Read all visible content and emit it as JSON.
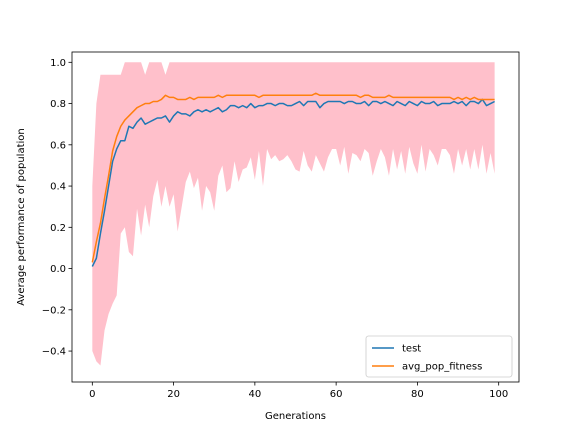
{
  "chart_data": {
    "type": "line",
    "title": "",
    "xlabel": "Generations",
    "ylabel": "Average performance of population",
    "xlim": [
      -5,
      105
    ],
    "ylim": [
      -0.55,
      1.05
    ],
    "xticks": [
      0,
      20,
      40,
      60,
      80,
      100
    ],
    "yticks": [
      -0.4,
      -0.2,
      0.0,
      0.2,
      0.4,
      0.6,
      0.8,
      1.0
    ],
    "xtick_labels": [
      "0",
      "20",
      "40",
      "60",
      "80",
      "100"
    ],
    "ytick_labels": [
      "−0.4",
      "−0.2",
      "0.0",
      "0.2",
      "0.4",
      "0.6",
      "0.8",
      "1.0"
    ],
    "grid": false,
    "legend_position": "lower-right",
    "x": [
      0,
      1,
      2,
      3,
      4,
      5,
      6,
      7,
      8,
      9,
      10,
      11,
      12,
      13,
      14,
      15,
      16,
      17,
      18,
      19,
      20,
      21,
      22,
      23,
      24,
      25,
      26,
      27,
      28,
      29,
      30,
      31,
      32,
      33,
      34,
      35,
      36,
      37,
      38,
      39,
      40,
      41,
      42,
      43,
      44,
      45,
      46,
      47,
      48,
      49,
      50,
      51,
      52,
      53,
      54,
      55,
      56,
      57,
      58,
      59,
      60,
      61,
      62,
      63,
      64,
      65,
      66,
      67,
      68,
      69,
      70,
      71,
      72,
      73,
      74,
      75,
      76,
      77,
      78,
      79,
      80,
      81,
      82,
      83,
      84,
      85,
      86,
      87,
      88,
      89,
      90,
      91,
      92,
      93,
      94,
      95,
      96,
      97,
      98,
      99
    ],
    "series": [
      {
        "name": "test",
        "color": "#1f77b4",
        "values": [
          0.01,
          0.05,
          0.17,
          0.28,
          0.4,
          0.52,
          0.58,
          0.62,
          0.62,
          0.69,
          0.68,
          0.71,
          0.73,
          0.7,
          0.71,
          0.72,
          0.73,
          0.73,
          0.74,
          0.71,
          0.74,
          0.76,
          0.75,
          0.75,
          0.74,
          0.76,
          0.77,
          0.76,
          0.77,
          0.76,
          0.77,
          0.78,
          0.76,
          0.77,
          0.79,
          0.79,
          0.78,
          0.79,
          0.78,
          0.8,
          0.78,
          0.79,
          0.79,
          0.8,
          0.8,
          0.79,
          0.8,
          0.8,
          0.79,
          0.79,
          0.8,
          0.81,
          0.79,
          0.81,
          0.81,
          0.81,
          0.78,
          0.8,
          0.81,
          0.81,
          0.81,
          0.81,
          0.8,
          0.81,
          0.81,
          0.8,
          0.8,
          0.81,
          0.79,
          0.81,
          0.81,
          0.8,
          0.81,
          0.8,
          0.79,
          0.81,
          0.8,
          0.79,
          0.81,
          0.8,
          0.79,
          0.81,
          0.8,
          0.8,
          0.81,
          0.79,
          0.8,
          0.8,
          0.8,
          0.81,
          0.8,
          0.81,
          0.79,
          0.81,
          0.81,
          0.8,
          0.82,
          0.79,
          0.8,
          0.81
        ]
      },
      {
        "name": "avg_pop_fitness",
        "color": "#ff7f0e",
        "values": [
          0.03,
          0.13,
          0.22,
          0.34,
          0.45,
          0.57,
          0.64,
          0.69,
          0.72,
          0.74,
          0.76,
          0.78,
          0.79,
          0.8,
          0.8,
          0.81,
          0.81,
          0.82,
          0.84,
          0.83,
          0.83,
          0.82,
          0.82,
          0.82,
          0.83,
          0.82,
          0.83,
          0.83,
          0.83,
          0.83,
          0.83,
          0.84,
          0.83,
          0.84,
          0.84,
          0.84,
          0.84,
          0.84,
          0.84,
          0.84,
          0.84,
          0.83,
          0.84,
          0.84,
          0.84,
          0.84,
          0.84,
          0.84,
          0.84,
          0.84,
          0.84,
          0.84,
          0.84,
          0.84,
          0.84,
          0.85,
          0.84,
          0.84,
          0.84,
          0.84,
          0.84,
          0.84,
          0.84,
          0.84,
          0.84,
          0.84,
          0.83,
          0.84,
          0.84,
          0.83,
          0.83,
          0.83,
          0.83,
          0.84,
          0.83,
          0.83,
          0.83,
          0.83,
          0.83,
          0.83,
          0.83,
          0.83,
          0.83,
          0.83,
          0.83,
          0.83,
          0.83,
          0.83,
          0.83,
          0.82,
          0.83,
          0.82,
          0.83,
          0.82,
          0.83,
          0.82,
          0.82,
          0.82,
          0.82,
          0.82
        ]
      }
    ],
    "band": {
      "color": "#ffc0cb",
      "lower": [
        -0.4,
        -0.45,
        -0.47,
        -0.3,
        -0.22,
        -0.17,
        -0.13,
        0.17,
        0.2,
        0.08,
        0.06,
        0.29,
        0.16,
        0.31,
        0.2,
        0.35,
        0.43,
        0.3,
        0.4,
        0.3,
        0.36,
        0.18,
        0.3,
        0.42,
        0.47,
        0.39,
        0.44,
        0.28,
        0.4,
        0.37,
        0.28,
        0.45,
        0.5,
        0.37,
        0.39,
        0.52,
        0.42,
        0.48,
        0.49,
        0.54,
        0.43,
        0.57,
        0.4,
        0.58,
        0.53,
        0.55,
        0.52,
        0.53,
        0.55,
        0.52,
        0.48,
        0.47,
        0.57,
        0.5,
        0.47,
        0.55,
        0.51,
        0.47,
        0.54,
        0.58,
        0.58,
        0.5,
        0.59,
        0.46,
        0.56,
        0.55,
        0.52,
        0.58,
        0.56,
        0.45,
        0.52,
        0.58,
        0.54,
        0.45,
        0.58,
        0.48,
        0.57,
        0.46,
        0.59,
        0.51,
        0.46,
        0.6,
        0.47,
        0.58,
        0.55,
        0.5,
        0.58,
        0.58,
        0.55,
        0.46,
        0.58,
        0.5,
        0.58,
        0.48,
        0.58,
        0.48,
        0.6,
        0.46,
        0.56,
        0.46
      ],
      "upper": [
        0.4,
        0.8,
        0.94,
        0.94,
        0.94,
        0.94,
        0.94,
        0.94,
        1.0,
        1.0,
        1.0,
        1.0,
        1.0,
        0.94,
        1.0,
        1.0,
        1.0,
        1.0,
        0.94,
        1.0,
        1.0,
        1.0,
        1.0,
        1.0,
        1.0,
        1.0,
        1.0,
        1.0,
        1.0,
        1.0,
        1.0,
        1.0,
        1.0,
        1.0,
        1.0,
        1.0,
        1.0,
        1.0,
        1.0,
        1.0,
        1.0,
        1.0,
        1.0,
        1.0,
        1.0,
        1.0,
        1.0,
        1.0,
        1.0,
        1.0,
        1.0,
        1.0,
        1.0,
        1.0,
        1.0,
        1.0,
        1.0,
        1.0,
        1.0,
        1.0,
        1.0,
        1.0,
        1.0,
        1.0,
        1.0,
        1.0,
        1.0,
        1.0,
        1.0,
        1.0,
        1.0,
        1.0,
        1.0,
        1.0,
        1.0,
        1.0,
        1.0,
        1.0,
        1.0,
        1.0,
        1.0,
        1.0,
        1.0,
        1.0,
        1.0,
        1.0,
        1.0,
        1.0,
        1.0,
        1.0,
        1.0,
        1.0,
        1.0,
        1.0,
        1.0,
        1.0,
        1.0,
        1.0,
        1.0,
        1.0
      ]
    }
  }
}
